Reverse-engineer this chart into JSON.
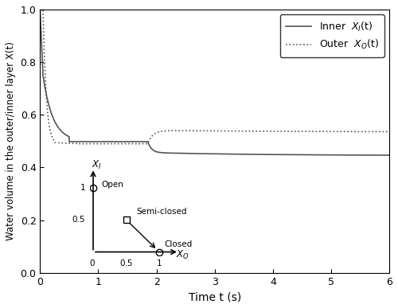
{
  "title": "",
  "xlabel": "Time t (s)",
  "ylabel": "Water volume in the outer/inner layer X(t)",
  "xlim": [
    0,
    6
  ],
  "ylim": [
    0,
    1
  ],
  "xticks": [
    0,
    1,
    2,
    3,
    4,
    5,
    6
  ],
  "yticks": [
    0,
    0.2,
    0.4,
    0.6,
    0.8,
    1
  ],
  "legend_inner": "Inner  $X_I$(t)",
  "legend_outer": "Outer  $X_O$(t)",
  "line_color": "#555555",
  "bg_color": "#ffffff",
  "inset_xI_label": "$X_I$",
  "inset_xO_label": "$X_O$",
  "inset_open_label": "Open",
  "inset_semiclosed_label": "Semi-closed",
  "inset_closed_label": "Closed"
}
